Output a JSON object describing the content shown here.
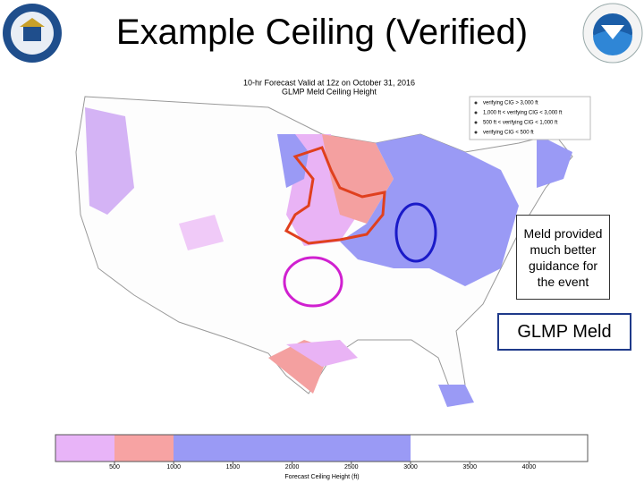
{
  "slide": {
    "title": "Example Ceiling (Verified)",
    "map": {
      "title_lines": [
        "10-hr Forecast Valid at 12z on October 31, 2016",
        "GLMP Meld Ceiling Height"
      ],
      "legend": [
        "verifying CIG > 3,000 ft",
        "1,000 ft < verifying CIG < 3,000 ft",
        "500 ft < verifying CIG < 1,000 ft",
        "verifying CIG < 500 ft"
      ]
    },
    "callout": "Meld provided much better guidance for the event",
    "label_box": "GLMP Meld",
    "colorbar": {
      "ticks": [
        "500",
        "1000",
        "1500",
        "2000",
        "2500",
        "3000",
        "3500",
        "4000"
      ],
      "label": "Forecast Ceiling Height (ft)"
    }
  }
}
